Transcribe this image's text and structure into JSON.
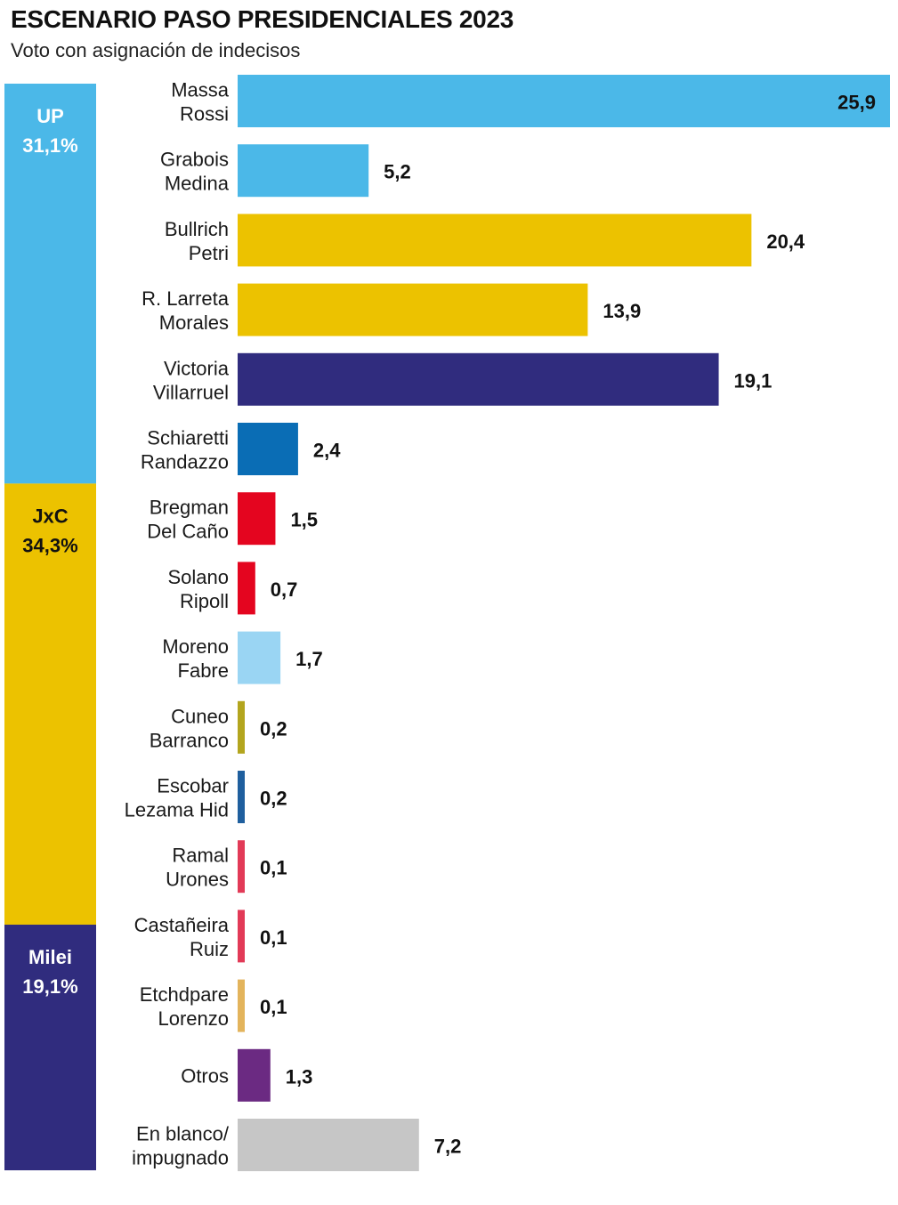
{
  "title": "ESCENARIO PASO PRESIDENCIALES 2023",
  "subtitle": "Voto con asignación de indecisos",
  "chart_data": {
    "type": "bar",
    "orientation": "horizontal",
    "title": "ESCENARIO PASO PRESIDENCIALES 2023",
    "subtitle": "Voto con asignación de indecisos",
    "xlabel": "",
    "ylabel": "",
    "xlim": [
      0,
      25.9
    ],
    "grid": false,
    "blocks": [
      {
        "name": "UP",
        "value_label": "31,1%",
        "value": 31.1,
        "color": "#4BB8E8"
      },
      {
        "name": "JxC",
        "value_label": "34,3%",
        "value": 34.3,
        "color": "#ECC200"
      },
      {
        "name": "Milei",
        "value_label": "19,1%",
        "value": 19.1,
        "color": "#302C7E"
      }
    ],
    "bars": [
      {
        "line1": "Massa",
        "line2": "Rossi",
        "value": 25.9,
        "value_label": "25,9",
        "color": "#4BB8E8",
        "label_inside": true
      },
      {
        "line1": "Grabois",
        "line2": "Medina",
        "value": 5.2,
        "value_label": "5,2",
        "color": "#4BB8E8"
      },
      {
        "line1": "Bullrich",
        "line2": "Petri",
        "value": 20.4,
        "value_label": "20,4",
        "color": "#ECC200"
      },
      {
        "line1": "R. Larreta",
        "line2": "Morales",
        "value": 13.9,
        "value_label": "13,9",
        "color": "#ECC200"
      },
      {
        "line1": "Victoria",
        "line2": "Villarruel",
        "value": 19.1,
        "value_label": "19,1",
        "color": "#302C7E"
      },
      {
        "line1": "Schiaretti",
        "line2": "Randazzo",
        "value": 2.4,
        "value_label": "2,4",
        "color": "#0A6DB5"
      },
      {
        "line1": "Bregman",
        "line2": "Del Caño",
        "value": 1.5,
        "value_label": "1,5",
        "color": "#E4051F"
      },
      {
        "line1": "Solano",
        "line2": "Ripoll",
        "value": 0.7,
        "value_label": "0,7",
        "color": "#E4051F"
      },
      {
        "line1": "Moreno",
        "line2": "Fabre",
        "value": 1.7,
        "value_label": "1,7",
        "color": "#9AD5F3"
      },
      {
        "line1": "Cuneo",
        "line2": "Barranco",
        "value": 0.2,
        "value_label": "0,2",
        "color": "#B3A51E"
      },
      {
        "line1": "Escobar",
        "line2": "Lezama Hid",
        "value": 0.2,
        "value_label": "0,2",
        "color": "#1F5F9E"
      },
      {
        "line1": "Ramal",
        "line2": "Urones",
        "value": 0.1,
        "value_label": "0,1",
        "color": "#E23A57"
      },
      {
        "line1": "Castañeira",
        "line2": "Ruiz",
        "value": 0.1,
        "value_label": "0,1",
        "color": "#E23A57"
      },
      {
        "line1": "Etchdpare",
        "line2": "Lorenzo",
        "value": 0.1,
        "value_label": "0,1",
        "color": "#E3B45C"
      },
      {
        "line1": "Otros",
        "line2": "",
        "value": 1.3,
        "value_label": "1,3",
        "color": "#6B2A82"
      },
      {
        "line1": "En blanco/",
        "line2": "impugnado",
        "value": 7.2,
        "value_label": "7,2",
        "color": "#C6C6C6"
      }
    ]
  }
}
